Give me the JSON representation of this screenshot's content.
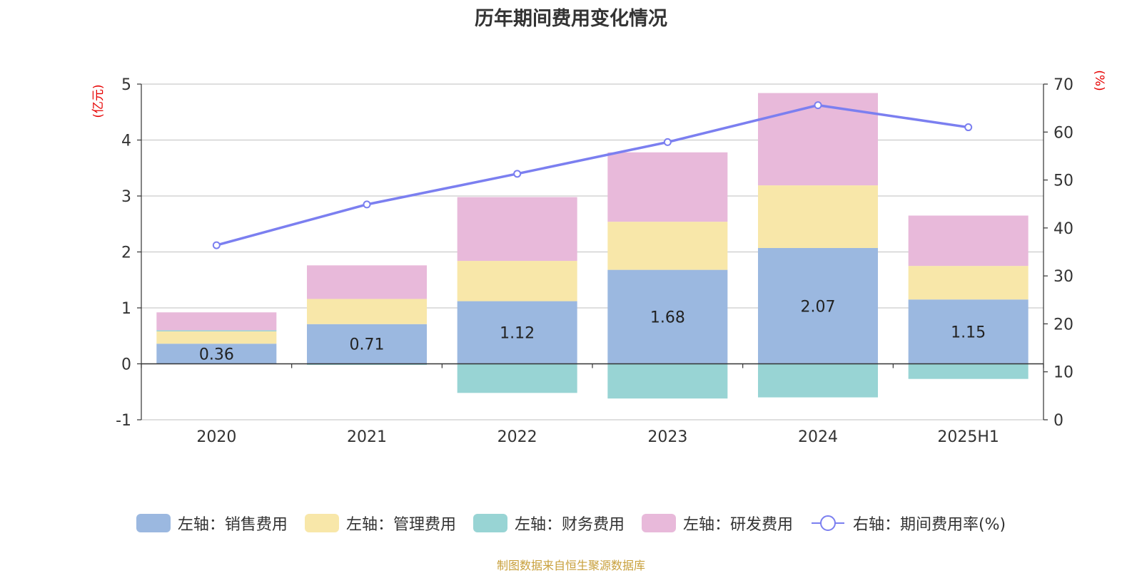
{
  "chart_data": {
    "type": "bar",
    "title": "历年期间费用变化情况",
    "categories": [
      "2020",
      "2021",
      "2022",
      "2023",
      "2024",
      "2025H1"
    ],
    "left_axis": {
      "unit_label": "(亿元)",
      "range": [
        -1,
        5
      ],
      "ticks": [
        "-1",
        "0",
        "1",
        "2",
        "3",
        "4",
        "5"
      ]
    },
    "right_axis": {
      "unit_label": "(%)",
      "range": [
        0,
        70
      ],
      "ticks": [
        "0",
        "10",
        "20",
        "30",
        "40",
        "50",
        "60",
        "70"
      ]
    },
    "series": [
      {
        "name": "左轴：销售费用",
        "type": "bar",
        "axis": "left",
        "color": "#9bb8e0",
        "values": [
          0.36,
          0.71,
          1.12,
          1.68,
          2.07,
          1.15
        ],
        "data_labels": [
          "0.36",
          "0.71",
          "1.12",
          "1.68",
          "2.07",
          "1.15"
        ]
      },
      {
        "name": "左轴：管理费用",
        "type": "bar",
        "axis": "left",
        "color": "#f8e7a9",
        "values": [
          0.22,
          0.45,
          0.72,
          0.86,
          1.12,
          0.6
        ]
      },
      {
        "name": "左轴：财务费用",
        "type": "bar",
        "axis": "left",
        "color": "#98d4d4",
        "values": [
          0.02,
          -0.02,
          -0.52,
          -0.62,
          -0.6,
          -0.27
        ]
      },
      {
        "name": "左轴：研发费用",
        "type": "bar",
        "axis": "left",
        "color": "#e8b9da",
        "values": [
          0.32,
          0.6,
          1.14,
          1.24,
          1.65,
          0.9
        ]
      },
      {
        "name": "右轴：期间费用率(%)",
        "type": "line",
        "axis": "right",
        "color": "#7b7ff0",
        "values": [
          36.4,
          44.9,
          51.3,
          57.9,
          65.6,
          61.0
        ]
      }
    ],
    "grid": true,
    "legend_position": "bottom"
  },
  "footer": {
    "text": "制图数据来自恒生聚源数据库",
    "color": "#c8a03c"
  },
  "colors": {
    "axis_unit": "#e60000",
    "text": "#333333",
    "grid": "#cccccc"
  }
}
